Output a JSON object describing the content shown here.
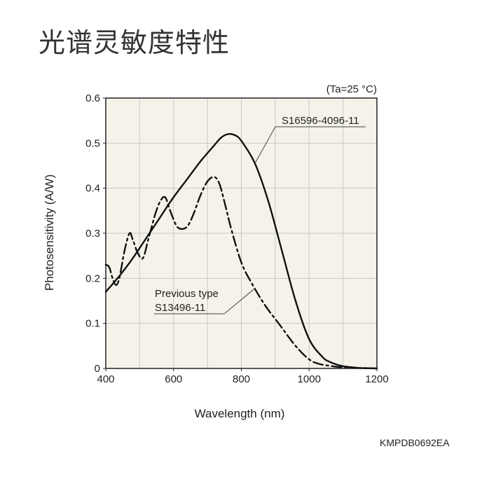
{
  "page": {
    "title": "光谱灵敏度特性",
    "footer_code": "KMPDB0692EA"
  },
  "chart_data": {
    "type": "line",
    "title": "",
    "condition_note": "(Ta=25 °C)",
    "xlabel": "Wavelength (nm)",
    "ylabel": "Photosensitivity (A/W)",
    "xlim": [
      400,
      1200
    ],
    "ylim": [
      0,
      0.6
    ],
    "x_ticks": [
      400,
      600,
      800,
      1000,
      1200
    ],
    "x_tick_labels": [
      "400",
      "600",
      "800",
      "1000",
      "1200"
    ],
    "y_ticks": [
      0,
      0.1,
      0.2,
      0.3,
      0.4,
      0.5,
      0.6
    ],
    "y_tick_labels": [
      "0",
      "0.1",
      "0.2",
      "0.3",
      "0.4",
      "0.5",
      "0.6"
    ],
    "grid": true,
    "series": [
      {
        "name": "S16596-4096-11",
        "style": "solid",
        "color": "#111111",
        "x": [
          400,
          440,
          480,
          520,
          560,
          600,
          640,
          680,
          720,
          740,
          760,
          780,
          800,
          840,
          880,
          920,
          960,
          1000,
          1040,
          1060,
          1080,
          1100,
          1120,
          1150,
          1180,
          1200
        ],
        "y": [
          0.17,
          0.205,
          0.245,
          0.29,
          0.335,
          0.38,
          0.42,
          0.46,
          0.495,
          0.512,
          0.52,
          0.518,
          0.505,
          0.455,
          0.37,
          0.26,
          0.15,
          0.065,
          0.025,
          0.015,
          0.009,
          0.005,
          0.003,
          0.001,
          0.0005,
          0
        ]
      },
      {
        "name": "S13496-11",
        "style": "dash-dot",
        "color": "#111111",
        "x": [
          400,
          410,
          420,
          430,
          440,
          455,
          470,
          480,
          495,
          510,
          525,
          545,
          560,
          575,
          590,
          610,
          630,
          645,
          660,
          680,
          700,
          720,
          735,
          750,
          770,
          800,
          830,
          870,
          910,
          960,
          1000,
          1030,
          1060,
          1090,
          1120,
          1150,
          1200
        ],
        "y": [
          0.23,
          0.225,
          0.2,
          0.185,
          0.2,
          0.26,
          0.3,
          0.285,
          0.255,
          0.245,
          0.285,
          0.34,
          0.37,
          0.38,
          0.35,
          0.315,
          0.31,
          0.32,
          0.345,
          0.385,
          0.415,
          0.425,
          0.41,
          0.37,
          0.31,
          0.235,
          0.19,
          0.14,
          0.1,
          0.05,
          0.02,
          0.01,
          0.006,
          0.003,
          0.002,
          0.001,
          0
        ]
      }
    ],
    "annotations": [
      {
        "text": "S16596-4096-11",
        "points_to_series": 0,
        "at_x": 840
      },
      {
        "text": "Previous type",
        "line2": "S13496-11",
        "points_to_series": 1,
        "at_x": 840
      }
    ]
  }
}
